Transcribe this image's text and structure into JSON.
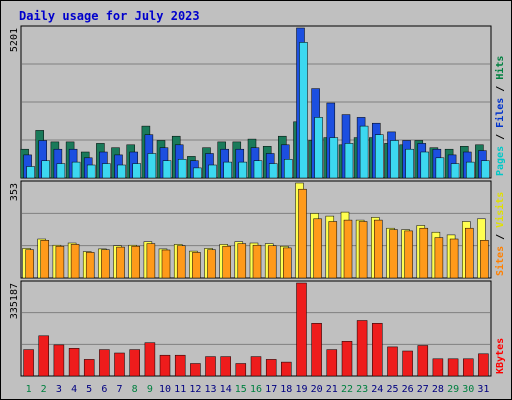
{
  "chart_data": {
    "type": "bar",
    "title": "Daily usage for July 2023",
    "categories": [
      "1",
      "2",
      "3",
      "4",
      "5",
      "6",
      "7",
      "8",
      "9",
      "10",
      "11",
      "12",
      "13",
      "14",
      "15",
      "16",
      "17",
      "18",
      "19",
      "20",
      "21",
      "22",
      "23",
      "24",
      "25",
      "26",
      "27",
      "28",
      "29",
      "30",
      "31"
    ],
    "weekend_days": [
      "1",
      "2",
      "8",
      "9",
      "15",
      "16",
      "22",
      "23",
      "29",
      "30"
    ],
    "panels": [
      {
        "name": "hits-files-pages",
        "ymax_label": "5201",
        "ylim": [
          0,
          5201
        ],
        "labels": [
          {
            "text": "Pages",
            "color": "#00C8C8"
          },
          {
            "text": " / ",
            "color": "#000000"
          },
          {
            "text": "Files",
            "color": "#0033CC"
          },
          {
            "text": " / ",
            "color": "#000000"
          },
          {
            "text": "Hits",
            "color": "#008040"
          }
        ],
        "series": [
          {
            "name": "Hits",
            "color": "#1A7A5A",
            "values": [
              1000,
              1650,
              1250,
              1250,
              900,
              1200,
              1050,
              1150,
              1800,
              1300,
              1450,
              750,
              1050,
              1250,
              1250,
              1350,
              1100,
              1450,
              1950,
              1300,
              1400,
              1150,
              1400,
              1400,
              1200,
              1150,
              1300,
              1050,
              1000,
              1100,
              1150
            ]
          },
          {
            "name": "Files",
            "color": "#1C4FE0",
            "values": [
              800,
              1300,
              1000,
              1000,
              700,
              900,
              800,
              900,
              1500,
              1050,
              1150,
              600,
              850,
              1000,
              1000,
              1050,
              850,
              1150,
              5201,
              3100,
              2600,
              2200,
              2100,
              1900,
              1600,
              1300,
              1200,
              1000,
              800,
              900,
              950
            ]
          },
          {
            "name": "Pages",
            "color": "#3CD8F0",
            "values": [
              400,
              600,
              500,
              550,
              450,
              500,
              450,
              500,
              850,
              600,
              650,
              350,
              450,
              550,
              550,
              600,
              500,
              650,
              4700,
              2100,
              1400,
              1200,
              1800,
              1500,
              1300,
              1000,
              900,
              700,
              500,
              550,
              600
            ]
          }
        ]
      },
      {
        "name": "visits-sites",
        "ymax_label": "353",
        "ylim": [
          0,
          353
        ],
        "labels": [
          {
            "text": "Sites",
            "color": "#FF8000"
          },
          {
            "text": " / ",
            "color": "#000000"
          },
          {
            "text": "Visits",
            "color": "#E0E000"
          }
        ],
        "series": [
          {
            "name": "Visits",
            "color": "#FFFF50",
            "values": [
              110,
              145,
              122,
              130,
              98,
              108,
              120,
              122,
              135,
              108,
              125,
              100,
              110,
              125,
              135,
              130,
              128,
              118,
              353,
              240,
              230,
              245,
              215,
              225,
              185,
              180,
              195,
              170,
              160,
              210,
              220
            ]
          },
          {
            "name": "Sites",
            "color": "#FF9A1A",
            "values": [
              105,
              140,
              118,
              125,
              95,
              105,
              115,
              118,
              128,
              104,
              120,
              95,
              105,
              118,
              128,
              122,
              120,
              112,
              330,
              220,
              210,
              215,
              210,
              215,
              180,
              175,
              185,
              150,
              145,
              185,
              140
            ]
          }
        ]
      },
      {
        "name": "kbytes",
        "ymax_label": "335187",
        "ylim": [
          0,
          335187
        ],
        "labels": [
          {
            "text": "KBytes",
            "color": "#FF0000"
          }
        ],
        "series": [
          {
            "name": "KBytes",
            "color": "#EE1C1C",
            "values": [
              95000,
              145000,
              112000,
              100000,
              60000,
              95000,
              83000,
              95000,
              120000,
              75000,
              75000,
              45000,
              70000,
              70000,
              45000,
              70000,
              60000,
              50000,
              335187,
              190000,
              95000,
              125000,
              200000,
              190000,
              105000,
              90000,
              110000,
              62000,
              62000,
              62000,
              80000
            ]
          }
        ]
      }
    ]
  }
}
